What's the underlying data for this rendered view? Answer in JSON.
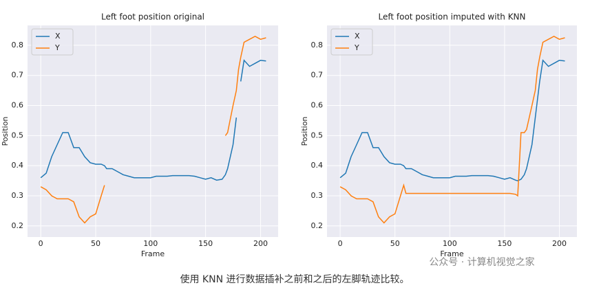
{
  "chart_data": [
    {
      "type": "line",
      "title": "Left foot position original",
      "x_label": "Frame",
      "y_label": "Position",
      "x": [
        0,
        5,
        10,
        15,
        20,
        25,
        30,
        35,
        40,
        45,
        50,
        55,
        58,
        60,
        65,
        70,
        75,
        80,
        85,
        90,
        95,
        100,
        105,
        110,
        115,
        120,
        125,
        130,
        135,
        140,
        145,
        150,
        155,
        160,
        165,
        168,
        170,
        175,
        178,
        180,
        182,
        185,
        190,
        195,
        200,
        205
      ],
      "series": [
        {
          "name": "X",
          "color": "#1f77b4",
          "values": [
            0.36,
            0.375,
            0.43,
            0.47,
            0.51,
            0.51,
            0.46,
            0.46,
            0.43,
            0.41,
            0.405,
            0.405,
            0.4,
            0.39,
            0.39,
            0.38,
            0.37,
            0.365,
            0.36,
            0.36,
            0.36,
            0.36,
            0.365,
            0.365,
            0.365,
            0.367,
            0.367,
            0.367,
            0.367,
            0.365,
            0.36,
            0.355,
            0.36,
            0.352,
            0.355,
            0.37,
            0.39,
            0.47,
            0.56,
            null,
            0.68,
            0.75,
            0.73,
            0.74,
            0.75,
            0.748
          ]
        },
        {
          "name": "Y",
          "color": "#ff7f0e",
          "values": [
            0.33,
            0.32,
            0.3,
            0.29,
            0.29,
            0.29,
            0.28,
            0.23,
            0.21,
            0.23,
            0.24,
            0.3,
            0.335,
            null,
            null,
            null,
            null,
            null,
            null,
            null,
            null,
            null,
            null,
            null,
            null,
            null,
            null,
            null,
            null,
            null,
            null,
            null,
            null,
            null,
            null,
            0.5,
            0.51,
            0.6,
            0.65,
            0.72,
            0.76,
            0.81,
            0.82,
            0.83,
            0.82,
            0.825
          ]
        }
      ],
      "xlim": [
        -12,
        216
      ],
      "ylim": [
        0.163,
        0.866
      ],
      "xticks": [
        0,
        50,
        100,
        150,
        200
      ],
      "yticks": [
        0.2,
        0.3,
        0.4,
        0.5,
        0.6,
        0.7,
        0.8
      ],
      "grid": true,
      "legend": "upper-left"
    },
    {
      "type": "line",
      "title": "Left foot position imputed with KNN",
      "x_label": "Frame",
      "y_label": "Position",
      "x": [
        0,
        5,
        10,
        15,
        20,
        25,
        30,
        35,
        40,
        45,
        50,
        55,
        58,
        60,
        65,
        70,
        75,
        80,
        85,
        90,
        95,
        100,
        105,
        110,
        115,
        120,
        125,
        130,
        135,
        140,
        145,
        150,
        155,
        160,
        162,
        165,
        168,
        170,
        175,
        178,
        180,
        182,
        185,
        190,
        195,
        200,
        205
      ],
      "series": [
        {
          "name": "X",
          "color": "#1f77b4",
          "values": [
            0.36,
            0.375,
            0.43,
            0.47,
            0.51,
            0.51,
            0.46,
            0.46,
            0.43,
            0.41,
            0.405,
            0.405,
            0.4,
            0.39,
            0.39,
            0.38,
            0.37,
            0.365,
            0.36,
            0.36,
            0.36,
            0.36,
            0.365,
            0.365,
            0.365,
            0.367,
            0.367,
            0.367,
            0.367,
            0.365,
            0.36,
            0.355,
            0.36,
            0.352,
            0.35,
            0.355,
            0.37,
            0.39,
            0.47,
            0.56,
            0.62,
            0.68,
            0.75,
            0.73,
            0.74,
            0.75,
            0.748
          ]
        },
        {
          "name": "Y",
          "color": "#ff7f0e",
          "values": [
            0.33,
            0.32,
            0.3,
            0.29,
            0.29,
            0.29,
            0.28,
            0.23,
            0.21,
            0.23,
            0.24,
            0.3,
            0.335,
            0.308,
            0.308,
            0.308,
            0.308,
            0.308,
            0.308,
            0.308,
            0.308,
            0.308,
            0.308,
            0.308,
            0.308,
            0.308,
            0.308,
            0.308,
            0.308,
            0.308,
            0.308,
            0.308,
            0.308,
            0.305,
            0.3,
            0.51,
            0.51,
            0.52,
            0.6,
            0.65,
            0.72,
            0.76,
            0.81,
            0.82,
            0.83,
            0.82,
            0.825
          ]
        }
      ],
      "xlim": [
        -12,
        216
      ],
      "ylim": [
        0.163,
        0.866
      ],
      "xticks": [
        0,
        50,
        100,
        150,
        200
      ],
      "yticks": [
        0.2,
        0.3,
        0.4,
        0.5,
        0.6,
        0.7,
        0.8
      ],
      "grid": true,
      "legend": "upper-left"
    }
  ],
  "watermark": "公众号 · 计算机视觉之家",
  "caption": "使用 KNN 进行数据插补之前和之后的左脚轨迹比较。"
}
